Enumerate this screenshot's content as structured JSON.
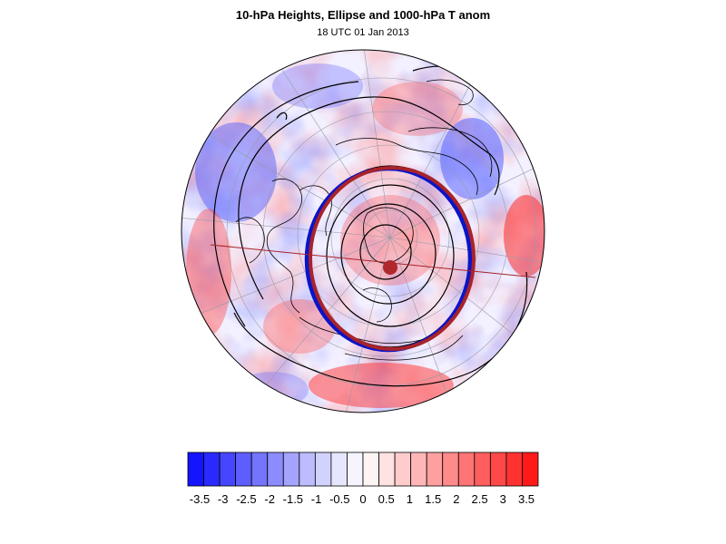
{
  "header": {
    "title": "10-hPa Heights, Ellipse and 1000-hPa T anom",
    "subtitle": "18 UTC 01 Jan 2013"
  },
  "colors": {
    "ellipse_fit": "#0a14c8",
    "ellipse_ref": "#a8232a",
    "center_marker": "#b0282c",
    "contour": "#000000",
    "coastline": "#000000"
  },
  "colorbar": {
    "labels": [
      "-3.5",
      "-3",
      "-2.5",
      "-2",
      "-1.5",
      "-1",
      "-0.5",
      "0",
      "0.5",
      "1",
      "1.5",
      "2",
      "2.5",
      "3",
      "3.5"
    ],
    "colors": [
      "#1414ff",
      "#2a2aff",
      "#4646ff",
      "#5e5eff",
      "#7474ff",
      "#8c8cff",
      "#a4a4ff",
      "#bcbcff",
      "#d2d2ff",
      "#e6e6ff",
      "#f6f4ff",
      "#fff4f4",
      "#ffe2e2",
      "#ffcccc",
      "#ffb6b6",
      "#ffa0a0",
      "#ff8a8a",
      "#ff7474",
      "#ff5e5e",
      "#ff4848",
      "#ff3232",
      "#ff1a1a"
    ]
  }
}
